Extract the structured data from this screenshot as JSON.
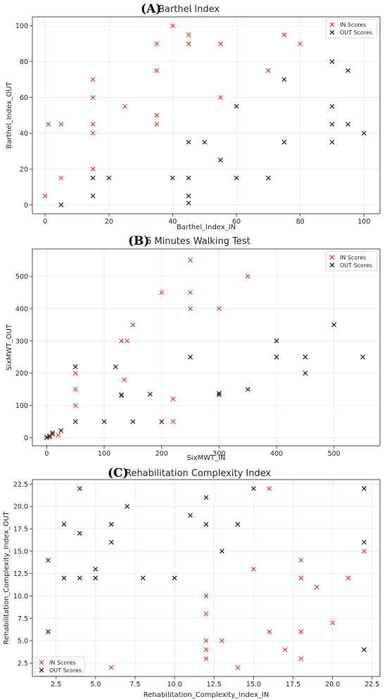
{
  "colors": {
    "in": "#e8453c",
    "out": "#2b2b2b"
  },
  "chart_data": [
    {
      "type": "scatter",
      "panel_letter": "(A)",
      "title": "Barthel Index",
      "xlabel": "Barthel_Index_IN",
      "ylabel": "Barthel_Index_OUT",
      "xlim": [
        -4,
        105
      ],
      "ylim": [
        -5,
        105
      ],
      "xticks": [
        0,
        20,
        40,
        60,
        80,
        100
      ],
      "xtick_labels": [
        "0",
        "20",
        "40",
        "60",
        "80",
        "100"
      ],
      "yticks": [
        0,
        20,
        40,
        60,
        80,
        100
      ],
      "ytick_labels": [
        "0",
        "20",
        "40",
        "60",
        "80",
        "100"
      ],
      "grid": true,
      "legend_position": "top-right",
      "series": [
        {
          "name": "IN Scores",
          "color": "#e8453c",
          "points": [
            [
              0,
              5
            ],
            [
              1,
              45
            ],
            [
              5,
              45
            ],
            [
              5,
              15
            ],
            [
              15,
              70
            ],
            [
              15,
              60
            ],
            [
              15,
              45
            ],
            [
              15,
              40
            ],
            [
              15,
              20
            ],
            [
              25,
              55
            ],
            [
              35,
              90
            ],
            [
              35,
              75
            ],
            [
              35,
              50
            ],
            [
              35,
              45
            ],
            [
              40,
              100
            ],
            [
              45,
              95
            ],
            [
              45,
              90
            ],
            [
              55,
              90
            ],
            [
              55,
              60
            ],
            [
              70,
              75
            ],
            [
              75,
              95
            ],
            [
              80,
              90
            ]
          ]
        },
        {
          "name": "OUT Scores",
          "color": "#2b2b2b",
          "points": [
            [
              5,
              0
            ],
            [
              15,
              15
            ],
            [
              15,
              5
            ],
            [
              20,
              15
            ],
            [
              40,
              15
            ],
            [
              45,
              35
            ],
            [
              45,
              15
            ],
            [
              45,
              5
            ],
            [
              45,
              1
            ],
            [
              50,
              35
            ],
            [
              55,
              25
            ],
            [
              60,
              55
            ],
            [
              60,
              15
            ],
            [
              70,
              15
            ],
            [
              75,
              70
            ],
            [
              75,
              35
            ],
            [
              90,
              80
            ],
            [
              90,
              55
            ],
            [
              90,
              45
            ],
            [
              90,
              35
            ],
            [
              95,
              75
            ],
            [
              95,
              45
            ],
            [
              100,
              40
            ]
          ]
        }
      ]
    },
    {
      "type": "scatter",
      "panel_letter": "(B)",
      "title": "6 Minutes Walking Test",
      "xlabel": "SixMWT_IN",
      "ylabel": "SixMWT_OUT",
      "xlim": [
        -25,
        580
      ],
      "ylim": [
        -25,
        585
      ],
      "xticks": [
        0,
        100,
        200,
        300,
        400,
        500
      ],
      "xtick_labels": [
        "0",
        "100",
        "200",
        "300",
        "400",
        "500"
      ],
      "yticks": [
        0,
        100,
        200,
        300,
        400,
        500
      ],
      "ytick_labels": [
        "0",
        "100",
        "200",
        "300",
        "400",
        "500"
      ],
      "grid": true,
      "legend_position": "top-right",
      "series": [
        {
          "name": "IN Scores",
          "color": "#e8453c",
          "points": [
            [
              0,
              0
            ],
            [
              5,
              2
            ],
            [
              10,
              10
            ],
            [
              20,
              8
            ],
            [
              50,
              200
            ],
            [
              50,
              150
            ],
            [
              50,
              100
            ],
            [
              130,
              300
            ],
            [
              130,
              130
            ],
            [
              135,
              180
            ],
            [
              140,
              300
            ],
            [
              150,
              350
            ],
            [
              200,
              450
            ],
            [
              220,
              120
            ],
            [
              220,
              50
            ],
            [
              250,
              550
            ],
            [
              250,
              450
            ],
            [
              250,
              400
            ],
            [
              300,
              400
            ],
            [
              350,
              500
            ]
          ]
        },
        {
          "name": "OUT Scores",
          "color": "#2b2b2b",
          "points": [
            [
              0,
              2
            ],
            [
              5,
              5
            ],
            [
              10,
              15
            ],
            [
              25,
              22
            ],
            [
              50,
              220
            ],
            [
              50,
              50
            ],
            [
              100,
              50
            ],
            [
              120,
              220
            ],
            [
              130,
              133
            ],
            [
              150,
              50
            ],
            [
              180,
              135
            ],
            [
              200,
              50
            ],
            [
              250,
              250
            ],
            [
              300,
              138
            ],
            [
              300,
              133
            ],
            [
              350,
              150
            ],
            [
              400,
              300
            ],
            [
              400,
              250
            ],
            [
              450,
              250
            ],
            [
              450,
              200
            ],
            [
              500,
              350
            ],
            [
              550,
              250
            ]
          ]
        }
      ]
    },
    {
      "type": "scatter",
      "panel_letter": "(C)",
      "title": "Rehabilitation Complexity Index",
      "xlabel": "Rehabilitation_Complexity_Index_IN",
      "ylabel": "Rehabilitation_Complexity_Index_OUT",
      "xlim": [
        1.0,
        23.0
      ],
      "ylim": [
        1.0,
        23.0
      ],
      "xticks": [
        2.5,
        5.0,
        7.5,
        10.0,
        12.5,
        15.0,
        17.5,
        20.0,
        22.5
      ],
      "xtick_labels": [
        "2.5",
        "5.0",
        "7.5",
        "10.0",
        "12.5",
        "15.0",
        "17.5",
        "20.0",
        "22.5"
      ],
      "yticks": [
        2.5,
        5.0,
        7.5,
        10.0,
        12.5,
        15.0,
        17.5,
        20.0,
        22.5
      ],
      "ytick_labels": [
        "2.5",
        "5.0",
        "7.5",
        "10.0",
        "12.5",
        "15.0",
        "17.5",
        "20.0",
        "22.5"
      ],
      "grid": true,
      "legend_position": "bottom-left",
      "series": [
        {
          "name": "IN Scores",
          "color": "#e8453c",
          "points": [
            [
              6,
              2
            ],
            [
              12,
              10
            ],
            [
              12,
              8
            ],
            [
              12,
              5
            ],
            [
              12,
              4
            ],
            [
              12,
              3
            ],
            [
              13,
              5
            ],
            [
              14,
              2
            ],
            [
              15,
              13
            ],
            [
              16,
              22
            ],
            [
              16,
              6
            ],
            [
              17,
              4
            ],
            [
              18,
              14
            ],
            [
              18,
              12
            ],
            [
              18,
              6
            ],
            [
              18,
              3
            ],
            [
              19,
              11
            ],
            [
              20,
              7
            ],
            [
              21,
              12
            ],
            [
              22,
              22
            ],
            [
              22,
              15
            ],
            [
              22,
              4
            ]
          ]
        },
        {
          "name": "OUT Scores",
          "color": "#2b2b2b",
          "points": [
            [
              2,
              14
            ],
            [
              2,
              6
            ],
            [
              3,
              18
            ],
            [
              3,
              12
            ],
            [
              4,
              22
            ],
            [
              4,
              17
            ],
            [
              4,
              12
            ],
            [
              5,
              13
            ],
            [
              5,
              12
            ],
            [
              6,
              18
            ],
            [
              6,
              16
            ],
            [
              7,
              20
            ],
            [
              8,
              12
            ],
            [
              10,
              12
            ],
            [
              11,
              19
            ],
            [
              12,
              21
            ],
            [
              12,
              18
            ],
            [
              13,
              15
            ],
            [
              14,
              18
            ],
            [
              15,
              22
            ],
            [
              22,
              22
            ],
            [
              22,
              16
            ],
            [
              22,
              4
            ]
          ]
        }
      ]
    }
  ]
}
